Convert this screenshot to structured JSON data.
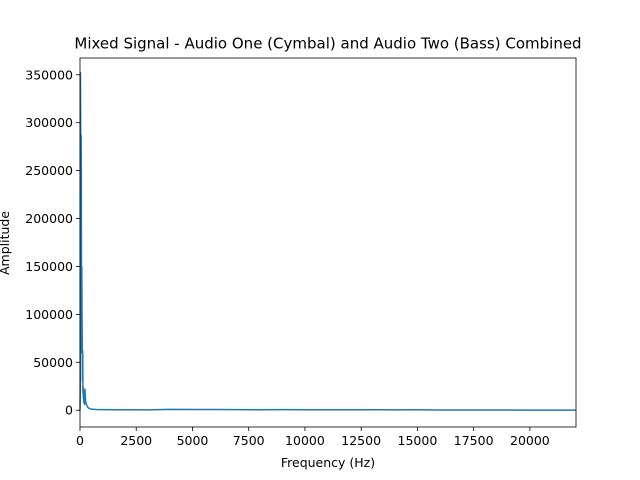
{
  "chart_data": {
    "type": "line",
    "title": "Mixed Signal - Audio One (Cymbal) and Audio Two (Bass) Combined",
    "xlabel": "Frequency (Hz)",
    "ylabel": "Amplitude",
    "xlim": [
      0,
      22050
    ],
    "ylim": [
      -17500,
      367500
    ],
    "xticks": [
      0,
      2500,
      5000,
      7500,
      10000,
      12500,
      15000,
      17500,
      20000
    ],
    "yticks": [
      0,
      50000,
      100000,
      150000,
      200000,
      250000,
      300000,
      350000
    ],
    "grid": false,
    "series": [
      {
        "color": "#1f77b4",
        "x": [
          0,
          10,
          20,
          30,
          40,
          50,
          60,
          70,
          80,
          90,
          100,
          110,
          120,
          130,
          140,
          150,
          160,
          170,
          180,
          200,
          220,
          250,
          300,
          350,
          400,
          500,
          700,
          1000,
          1500,
          2000,
          3000,
          4000,
          5000,
          6000,
          7000,
          8000,
          9000,
          10000,
          11000,
          12000,
          13000,
          14000,
          15000,
          16000,
          17000,
          18000,
          19000,
          20000,
          21000,
          22050
        ],
        "y": [
          0,
          20000,
          352000,
          290000,
          120000,
          287000,
          240000,
          60000,
          150000,
          100000,
          70000,
          30000,
          62000,
          18000,
          25000,
          12000,
          20000,
          8000,
          15000,
          6000,
          22000,
          9000,
          5000,
          3000,
          2000,
          1200,
          800,
          600,
          500,
          500,
          400,
          900,
          700,
          800,
          600,
          500,
          600,
          500,
          550,
          450,
          500,
          400,
          450,
          300,
          250,
          200,
          180,
          150,
          120,
          100
        ]
      }
    ]
  }
}
